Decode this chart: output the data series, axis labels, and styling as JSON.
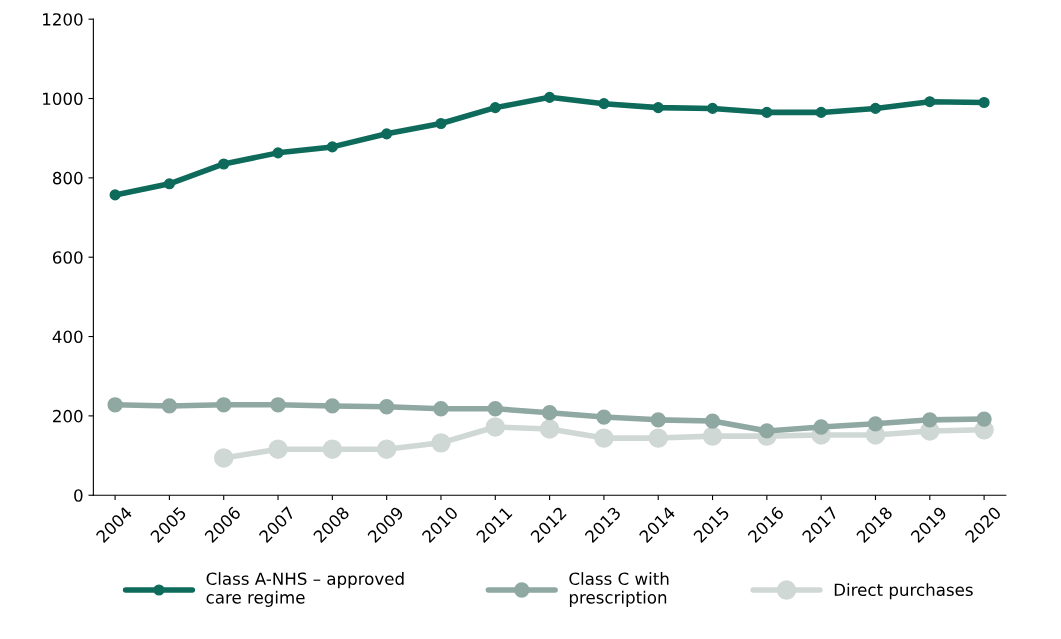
{
  "chart_data": {
    "type": "line",
    "categories": [
      "2004",
      "2005",
      "2006",
      "2007",
      "2008",
      "2009",
      "2010",
      "2011",
      "2012",
      "2013",
      "2014",
      "2015",
      "2016",
      "2017",
      "2018",
      "2019",
      "2020"
    ],
    "series": [
      {
        "name": "Class A-NHS – approved\ncare regime",
        "color": "#0e6b5c",
        "values": [
          757,
          785,
          835,
          863,
          878,
          911,
          937,
          977,
          1003,
          987,
          977,
          975,
          965,
          965,
          975,
          992,
          990
        ]
      },
      {
        "name": "Class C with\nprescription",
        "color": "#8fa8a2",
        "values": [
          228,
          225,
          228,
          228,
          225,
          223,
          218,
          218,
          208,
          197,
          190,
          187,
          162,
          172,
          180,
          190,
          192
        ]
      },
      {
        "name": "Direct purchases",
        "color": "#cfd8d5",
        "values": [
          null,
          null,
          94,
          116,
          116,
          116,
          132,
          172,
          167,
          144,
          144,
          149,
          149,
          152,
          152,
          162,
          165
        ]
      }
    ],
    "ylim": [
      0,
      1200
    ],
    "yticks": [
      0,
      200,
      400,
      600,
      800,
      1000,
      1200
    ],
    "grid": false,
    "legend": "bottom",
    "marker": "circle",
    "line_style": "solid"
  }
}
